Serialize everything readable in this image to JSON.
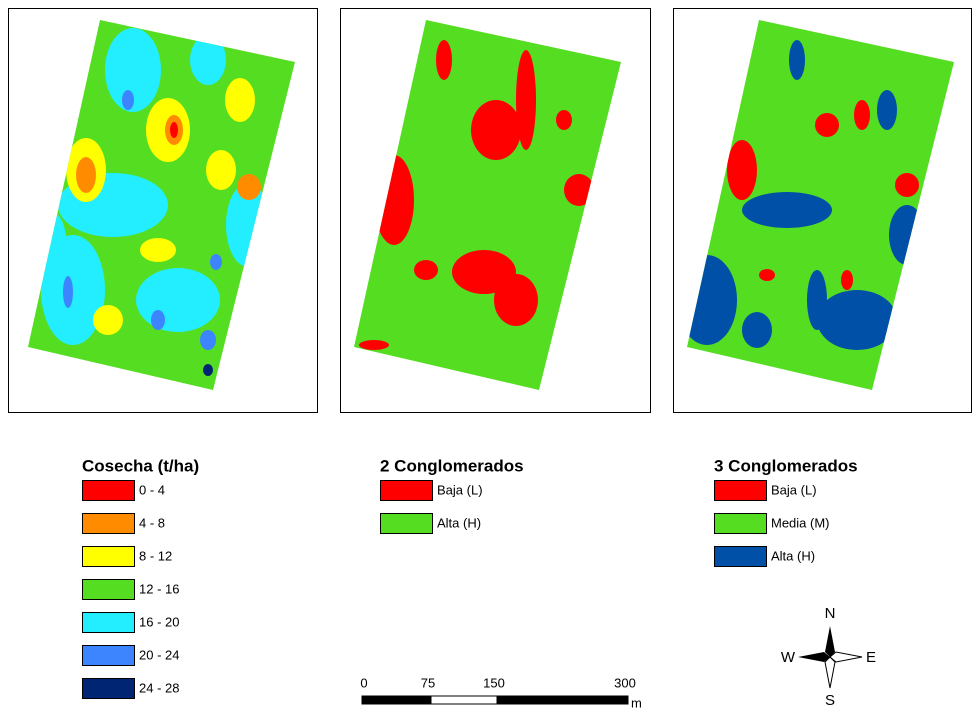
{
  "panels": [
    {
      "title": "Cosecha (t/ha)",
      "items": [
        {
          "label": "0 - 4",
          "color": "#ff0000"
        },
        {
          "label": "4 - 8",
          "color": "#ff8c00"
        },
        {
          "label": "8 - 12",
          "color": "#ffff00"
        },
        {
          "label": "12 - 16",
          "color": "#55dd22"
        },
        {
          "label": "16 - 20",
          "color": "#22eeff"
        },
        {
          "label": "20 - 24",
          "color": "#3d85ff"
        },
        {
          "label": "24 - 28",
          "color": "#002673"
        }
      ]
    },
    {
      "title": "2 Conglomerados",
      "items": [
        {
          "label": "Baja (L)",
          "color": "#ff0000"
        },
        {
          "label": "Alta (H)",
          "color": "#55dd22"
        }
      ]
    },
    {
      "title": "3 Conglomerados",
      "items": [
        {
          "label": "Baja (L)",
          "color": "#ff0000"
        },
        {
          "label": "Media (M)",
          "color": "#55dd22"
        },
        {
          "label": "Alta (H)",
          "color": "#0050a8"
        }
      ]
    }
  ],
  "scale_bar": {
    "labels": [
      "0",
      "75",
      "150",
      "300"
    ],
    "unit": "m"
  },
  "compass": [
    "N",
    "S",
    "E",
    "W"
  ]
}
